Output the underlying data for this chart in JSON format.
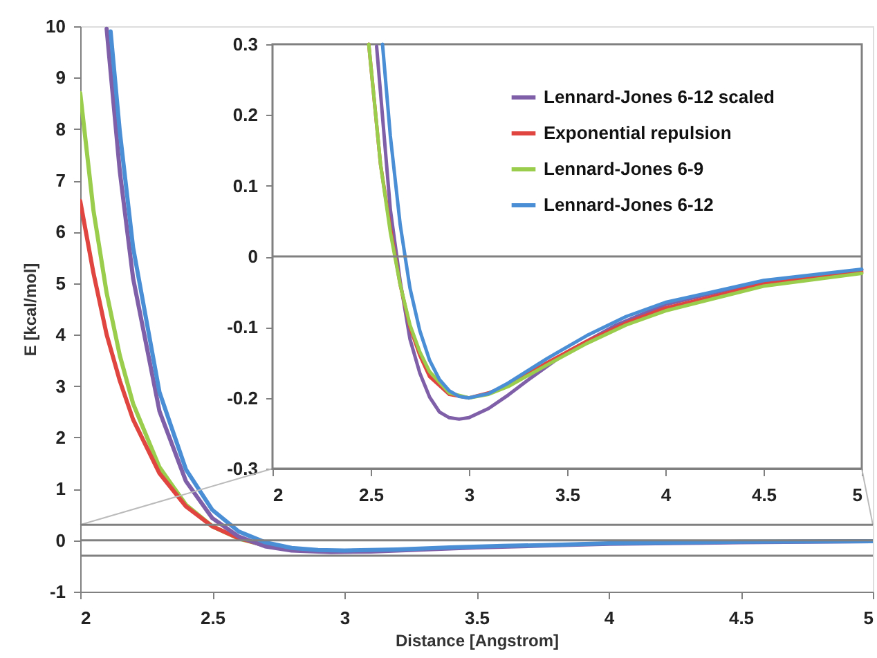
{
  "chart_data": [
    {
      "type": "line",
      "xlabel": "Distance [Angstrom]",
      "ylabel": "E [kcal/mol]",
      "xlim": [
        2,
        5
      ],
      "xticks": [
        2,
        2.5,
        3,
        3.5,
        4,
        4.5,
        5
      ],
      "ylim": [
        -1,
        10
      ],
      "yticks": [
        -1,
        0,
        1,
        2,
        3,
        4,
        5,
        6,
        7,
        8,
        9,
        10
      ],
      "grid": false,
      "legend": false,
      "line_style": "solid",
      "marker": "none",
      "ref_lines": [
        {
          "axis": "y",
          "value": 0,
          "color": "#808080"
        },
        {
          "axis": "y",
          "value": 0.3,
          "color": "#808080"
        },
        {
          "axis": "y",
          "value": -0.3,
          "color": "#808080"
        }
      ],
      "series": [
        {
          "color": "#9acd4c",
          "x": [
            2.0,
            2.05,
            2.1,
            2.15,
            2.2,
            2.3,
            2.4,
            2.5,
            2.6,
            2.7
          ],
          "values": [
            8.7,
            6.42,
            4.81,
            3.59,
            2.66,
            1.42,
            0.69,
            0.27,
            0.03,
            -0.1
          ]
        },
        {
          "color": "#e0463f",
          "x": [
            2.0,
            2.05,
            2.1,
            2.15,
            2.2,
            2.3,
            2.4,
            2.5,
            2.6,
            2.7,
            2.8
          ],
          "values": [
            6.6,
            5.2,
            4.0,
            3.1,
            2.35,
            1.3,
            0.66,
            0.27,
            0.04,
            -0.1,
            -0.17
          ]
        },
        {
          "color": "#7f5fa8",
          "x": [
            2.1,
            2.15,
            2.2,
            2.3,
            2.4,
            2.5,
            2.6,
            2.7,
            2.8,
            2.95,
            3.1,
            3.3,
            3.5,
            4.0,
            4.5,
            5.0
          ],
          "values": [
            9.95,
            7.17,
            5.1,
            2.51,
            1.15,
            0.43,
            0.07,
            -0.12,
            -0.2,
            -0.23,
            -0.22,
            -0.18,
            -0.14,
            -0.07,
            -0.04,
            -0.02
          ]
        },
        {
          "color": "#4a8fd6",
          "x": [
            2.115,
            2.15,
            2.2,
            2.3,
            2.4,
            2.5,
            2.6,
            2.7,
            2.8,
            2.9,
            3.0,
            3.2,
            3.4,
            3.6,
            3.8,
            4.0,
            4.5,
            5.0
          ],
          "values": [
            9.9,
            7.94,
            5.7,
            2.88,
            1.38,
            0.59,
            0.17,
            -0.04,
            -0.15,
            -0.19,
            -0.2,
            -0.18,
            -0.14,
            -0.11,
            -0.09,
            -0.06,
            -0.03,
            -0.02
          ]
        }
      ]
    },
    {
      "type": "line",
      "xlim": [
        2,
        5
      ],
      "xticks": [
        2,
        2.5,
        3,
        3.5,
        4,
        4.5,
        5
      ],
      "ylim": [
        -0.3,
        0.3
      ],
      "yticks": [
        -0.3,
        -0.2,
        -0.1,
        0,
        0.1,
        0.2,
        0.3
      ],
      "grid": false,
      "legend": "top right",
      "line_style": "solid",
      "marker": "none",
      "ref_lines": [
        {
          "axis": "y",
          "value": 0,
          "color": "#808080"
        }
      ],
      "series": [
        {
          "name": "Lennard-Jones 6-12 scaled",
          "color": "#7f5fa8",
          "x": [
            2.53,
            2.6,
            2.65,
            2.7,
            2.75,
            2.8,
            2.85,
            2.9,
            2.95,
            3.0,
            3.1,
            3.2,
            3.3,
            3.5,
            3.75,
            4.0,
            4.5,
            5.0
          ],
          "values": [
            0.297,
            0.066,
            -0.035,
            -0.117,
            -0.165,
            -0.199,
            -0.22,
            -0.228,
            -0.23,
            -0.228,
            -0.215,
            -0.196,
            -0.175,
            -0.135,
            -0.097,
            -0.068,
            -0.035,
            -0.019
          ]
        },
        {
          "name": "Exponential repulsion",
          "color": "#e0463f",
          "x": [
            2.49,
            2.55,
            2.6,
            2.65,
            2.7,
            2.75,
            2.8,
            2.9,
            3.0,
            3.1,
            3.2,
            3.4,
            3.6,
            3.8,
            4.0,
            4.5,
            5.0
          ],
          "values": [
            0.3,
            0.13,
            0.04,
            -0.04,
            -0.1,
            -0.14,
            -0.17,
            -0.195,
            -0.2,
            -0.193,
            -0.182,
            -0.15,
            -0.12,
            -0.094,
            -0.073,
            -0.039,
            -0.022
          ]
        },
        {
          "name": "Lennard-Jones 6-9",
          "color": "#9acd4c",
          "x": [
            2.49,
            2.55,
            2.6,
            2.65,
            2.7,
            2.75,
            2.8,
            2.9,
            3.0,
            3.1,
            3.2,
            3.4,
            3.6,
            3.8,
            4.0,
            4.5,
            5.0
          ],
          "values": [
            0.3,
            0.13,
            0.034,
            -0.04,
            -0.097,
            -0.135,
            -0.163,
            -0.193,
            -0.2,
            -0.195,
            -0.184,
            -0.153,
            -0.123,
            -0.097,
            -0.077,
            -0.042,
            -0.024
          ]
        },
        {
          "name": "Lennard-Jones 6-12",
          "color": "#4a8fd6",
          "x": [
            2.56,
            2.6,
            2.65,
            2.7,
            2.75,
            2.8,
            2.85,
            2.9,
            2.95,
            3.0,
            3.1,
            3.2,
            3.4,
            3.6,
            3.8,
            4.0,
            4.5,
            5.0
          ],
          "values": [
            0.3,
            0.17,
            0.045,
            -0.045,
            -0.105,
            -0.147,
            -0.174,
            -0.19,
            -0.198,
            -0.2,
            -0.194,
            -0.179,
            -0.144,
            -0.112,
            -0.085,
            -0.065,
            -0.034,
            -0.018
          ]
        }
      ]
    }
  ]
}
